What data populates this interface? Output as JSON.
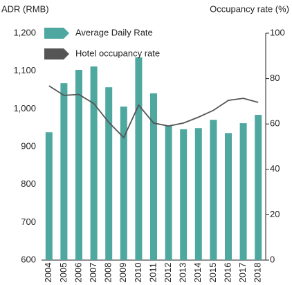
{
  "chart_data": {
    "type": "bar-line",
    "ylabel": "ADR (RMB)",
    "y2label": "Occupancy rate (%)",
    "categories": [
      "2004",
      "2005",
      "2006",
      "2007",
      "2008",
      "2009",
      "2010",
      "2011",
      "2012",
      "2013",
      "2014",
      "2015",
      "2016",
      "2017",
      "2018"
    ],
    "series": [
      {
        "name": "Average Daily Rate",
        "type": "bar",
        "color": "#4ea8a0",
        "axis": "y",
        "values": [
          938,
          1068,
          1103,
          1112,
          1057,
          1006,
          1136,
          1041,
          955,
          946,
          949,
          971,
          936,
          962,
          984
        ]
      },
      {
        "name": "Hotel occupancy rate",
        "type": "line",
        "color": "#555555",
        "axis": "y2",
        "values": [
          76.8,
          72.6,
          73.0,
          69.0,
          60.7,
          54.0,
          68.3,
          60.4,
          59.1,
          60.4,
          63.0,
          66.0,
          70.4,
          71.3,
          69.5
        ]
      }
    ],
    "ylim": [
      600,
      1200
    ],
    "yticks": [
      600,
      700,
      800,
      900,
      {
        "value": 1000,
        "label": "1,000"
      },
      {
        "value": 1100,
        "label": "1,100"
      },
      {
        "value": 1200,
        "label": "1,200"
      }
    ],
    "y2lim": [
      0,
      100
    ],
    "y2ticks": [
      0,
      20,
      40,
      60,
      80,
      100
    ],
    "legend": "upper left",
    "grid": false
  }
}
